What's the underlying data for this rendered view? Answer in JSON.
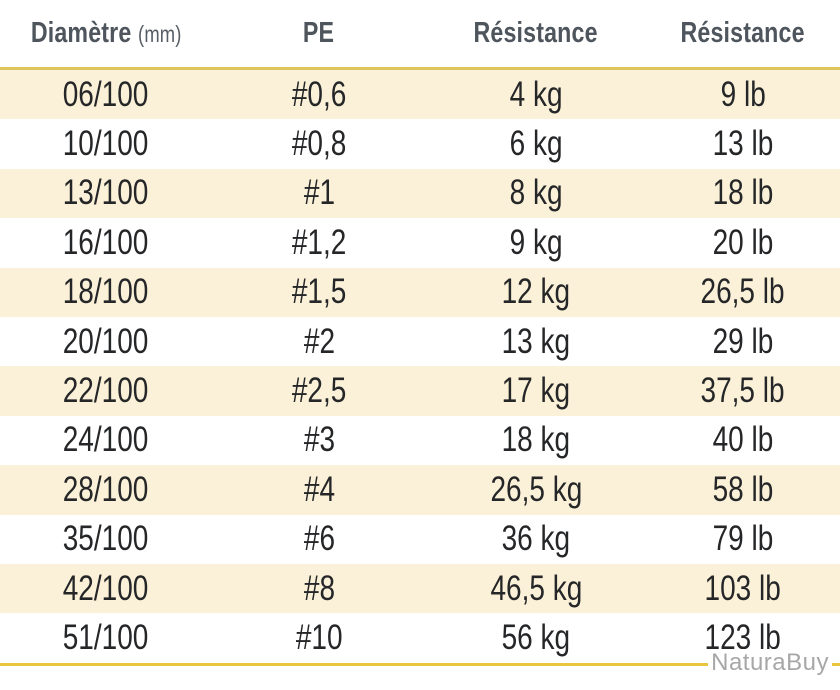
{
  "table": {
    "headers": [
      {
        "label": "Diamètre",
        "unit": "(mm)"
      },
      {
        "label": "PE"
      },
      {
        "label": "Résistance"
      },
      {
        "label": "Résistance"
      }
    ],
    "rows": [
      [
        "06/100",
        "#0,6",
        "4 kg",
        "9 lb"
      ],
      [
        "10/100",
        "#0,8",
        "6 kg",
        "13 lb"
      ],
      [
        "13/100",
        "#1",
        "8 kg",
        "18 lb"
      ],
      [
        "16/100",
        "#1,2",
        "9 kg",
        "20 lb"
      ],
      [
        "18/100",
        "#1,5",
        "12 kg",
        "26,5 lb"
      ],
      [
        "20/100",
        "#2",
        "13 kg",
        "29 lb"
      ],
      [
        "22/100",
        "#2,5",
        "17 kg",
        "37,5 lb"
      ],
      [
        "24/100",
        "#3",
        "18 kg",
        "40 lb"
      ],
      [
        "28/100",
        "#4",
        "26,5 kg",
        "58 lb"
      ],
      [
        "35/100",
        "#6",
        "36 kg",
        "79 lb"
      ],
      [
        "42/100",
        "#8",
        "46,5 kg",
        "103 lb"
      ],
      [
        "51/100",
        "#10",
        "56 kg",
        "123 lb"
      ]
    ]
  },
  "watermark": {
    "text": "NaturaBuy"
  },
  "colors": {
    "stripe_row": "#fbf1d8",
    "plain_row": "#ffffff",
    "header_rule": "#e0c55e",
    "bottom_rule": "#eac542",
    "header_text": "#4e555d",
    "body_text": "#252628",
    "watermark_text": "#a7a7a7"
  },
  "chart_data": {
    "type": "table",
    "title": "",
    "columns": [
      "Diamètre (mm)",
      "PE",
      "Résistance (kg)",
      "Résistance (lb)"
    ],
    "rows": [
      [
        "06/100",
        "#0,6",
        "4 kg",
        "9 lb"
      ],
      [
        "10/100",
        "#0,8",
        "6 kg",
        "13 lb"
      ],
      [
        "13/100",
        "#1",
        "8 kg",
        "18 lb"
      ],
      [
        "16/100",
        "#1,2",
        "9 kg",
        "20 lb"
      ],
      [
        "18/100",
        "#1,5",
        "12 kg",
        "26,5 lb"
      ],
      [
        "20/100",
        "#2",
        "13 kg",
        "29 lb"
      ],
      [
        "22/100",
        "#2,5",
        "17 kg",
        "37,5 lb"
      ],
      [
        "24/100",
        "#3",
        "18 kg",
        "40 lb"
      ],
      [
        "28/100",
        "#4",
        "26,5 kg",
        "58 lb"
      ],
      [
        "35/100",
        "#6",
        "36 kg",
        "79 lb"
      ],
      [
        "42/100",
        "#8",
        "46,5 kg",
        "103 lb"
      ],
      [
        "51/100",
        "#10",
        "56 kg",
        "123 lb"
      ]
    ],
    "resistance_kg": [
      4,
      6,
      8,
      9,
      12,
      13,
      17,
      18,
      26.5,
      36,
      46.5,
      56
    ],
    "resistance_lb": [
      9,
      13,
      18,
      20,
      26.5,
      29,
      37.5,
      40,
      58,
      79,
      103,
      123
    ],
    "layout_hints": {
      "striped_rows": "odd rows cream",
      "grid": "off",
      "accent_rules": "gold line under header and under last row"
    }
  }
}
